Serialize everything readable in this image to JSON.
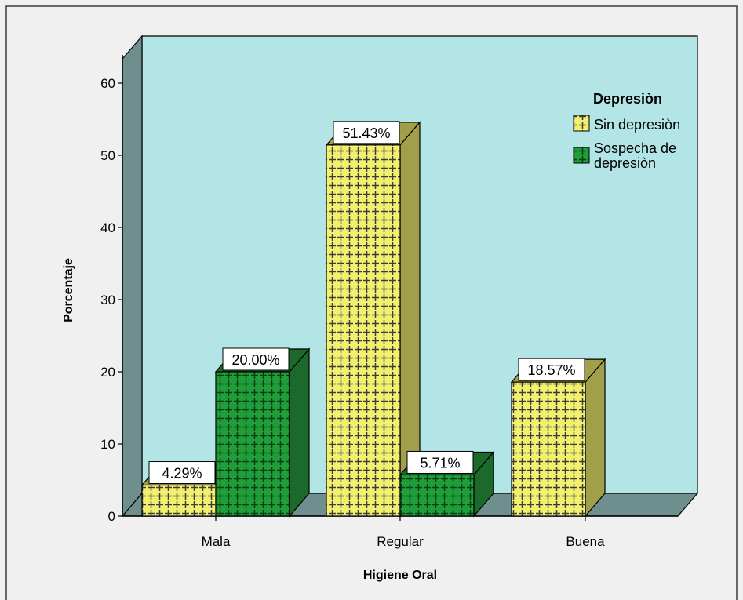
{
  "colors": {
    "background": "#f0f0f0",
    "wall": "#b3e5e6",
    "side_wall": "#6f8f8f",
    "floor": "#6f8f8f",
    "sin_depresion": "#f2f06e",
    "sin_depresion_side": "#a19f4a",
    "sospecha": "#1f9e3a",
    "sospecha_side": "#1b6a2b",
    "border": "#000000"
  },
  "chart_data": {
    "type": "bar",
    "title": "",
    "xlabel": "Higiene Oral",
    "ylabel": "Porcentaje",
    "categories": [
      "Mala",
      "Regular",
      "Buena"
    ],
    "ylim": [
      0,
      65
    ],
    "yticks": [
      0,
      10,
      20,
      30,
      40,
      50,
      60
    ],
    "legend": {
      "title": "Depresiòn",
      "position": "top-right"
    },
    "series": [
      {
        "name": "Sin depresiòn",
        "values": [
          4.29,
          51.43,
          18.57
        ],
        "labels": [
          "4.29%",
          "51.43%",
          "18.57%"
        ]
      },
      {
        "name": "Sospecha de depresiòn",
        "values": [
          20.0,
          5.71,
          null
        ],
        "labels": [
          "20.00%",
          "5.71%",
          ""
        ]
      }
    ],
    "grid": false,
    "style": "3d"
  }
}
